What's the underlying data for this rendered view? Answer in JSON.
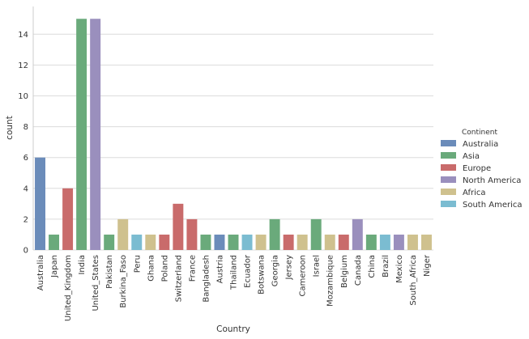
{
  "chart_data": {
    "type": "bar",
    "xlabel": "Country",
    "ylabel": "count",
    "ylim": [
      0,
      15.8
    ],
    "yticks": [
      0,
      2,
      4,
      6,
      8,
      10,
      12,
      14
    ],
    "grid": "horizontal",
    "legend_placement": "right",
    "legend_title": "Continent",
    "legend": [
      {
        "name": "Australia",
        "color": "#6b8cba"
      },
      {
        "name": "Asia",
        "color": "#6aaa7b"
      },
      {
        "name": "Europe",
        "color": "#c96b6b"
      },
      {
        "name": "North America",
        "color": "#9a8fbd"
      },
      {
        "name": "Africa",
        "color": "#cfc18e"
      },
      {
        "name": "South America",
        "color": "#7bbcd1"
      }
    ],
    "categories": [
      "Australia",
      "Japan",
      "United_Kingdom",
      "India",
      "United_States",
      "Pakistan",
      "Burkina_Faso",
      "Peru",
      "Ghana",
      "Poland",
      "Switzerland",
      "France",
      "Bangladesh",
      "Austria",
      "Thailand",
      "Ecuador",
      "Botswana",
      "Georgia",
      "Jersey",
      "Cameroon",
      "Israel",
      "Mozambique",
      "Belgium",
      "Canada",
      "China",
      "Brazil",
      "Mexico",
      "South_Africa",
      "Niger"
    ],
    "values": [
      6,
      1,
      4,
      15,
      15,
      1,
      2,
      1,
      1,
      1,
      3,
      2,
      1,
      1,
      1,
      1,
      1,
      2,
      1,
      1,
      2,
      1,
      1,
      2,
      1,
      1,
      1,
      1,
      1
    ],
    "bar_continent": [
      "Australia",
      "Asia",
      "Europe",
      "Asia",
      "North America",
      "Asia",
      "Africa",
      "South America",
      "Africa",
      "Europe",
      "Europe",
      "Europe",
      "Asia",
      "Australia",
      "Asia",
      "South America",
      "Africa",
      "Asia",
      "Europe",
      "Africa",
      "Asia",
      "Africa",
      "Europe",
      "North America",
      "Asia",
      "South America",
      "North America",
      "Africa",
      "Africa"
    ]
  }
}
